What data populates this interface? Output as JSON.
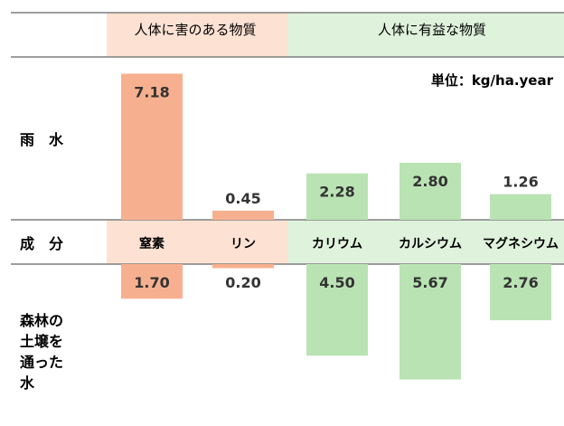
{
  "chart_data": {
    "type": "bar",
    "header": {
      "harmful_label": "人体に害のある物質",
      "beneficial_label": "人体に有益な物質"
    },
    "unit_label": "単位：kg/ha.year",
    "axis_row_label": "成　分",
    "categories": [
      "窒素",
      "リン",
      "カリウム",
      "カルシウム",
      "マグネシウム"
    ],
    "groups": [
      "harmful",
      "harmful",
      "beneficial",
      "beneficial",
      "beneficial"
    ],
    "series": [
      {
        "name": "雨　水",
        "values": [
          7.18,
          0.45,
          2.28,
          2.8,
          1.26
        ]
      },
      {
        "name": "森林の土壌を通った水",
        "name_lines": [
          "森林の",
          "土壌を",
          "通った",
          "水"
        ],
        "values": [
          1.7,
          0.2,
          4.5,
          5.67,
          2.76
        ]
      }
    ],
    "colors": {
      "harmful": "#f7b08f",
      "harmful_band": "#fde2d4",
      "beneficial": "#b9e3b3",
      "beneficial_band": "#dff2dc",
      "rule": "#7f7f7f"
    }
  }
}
